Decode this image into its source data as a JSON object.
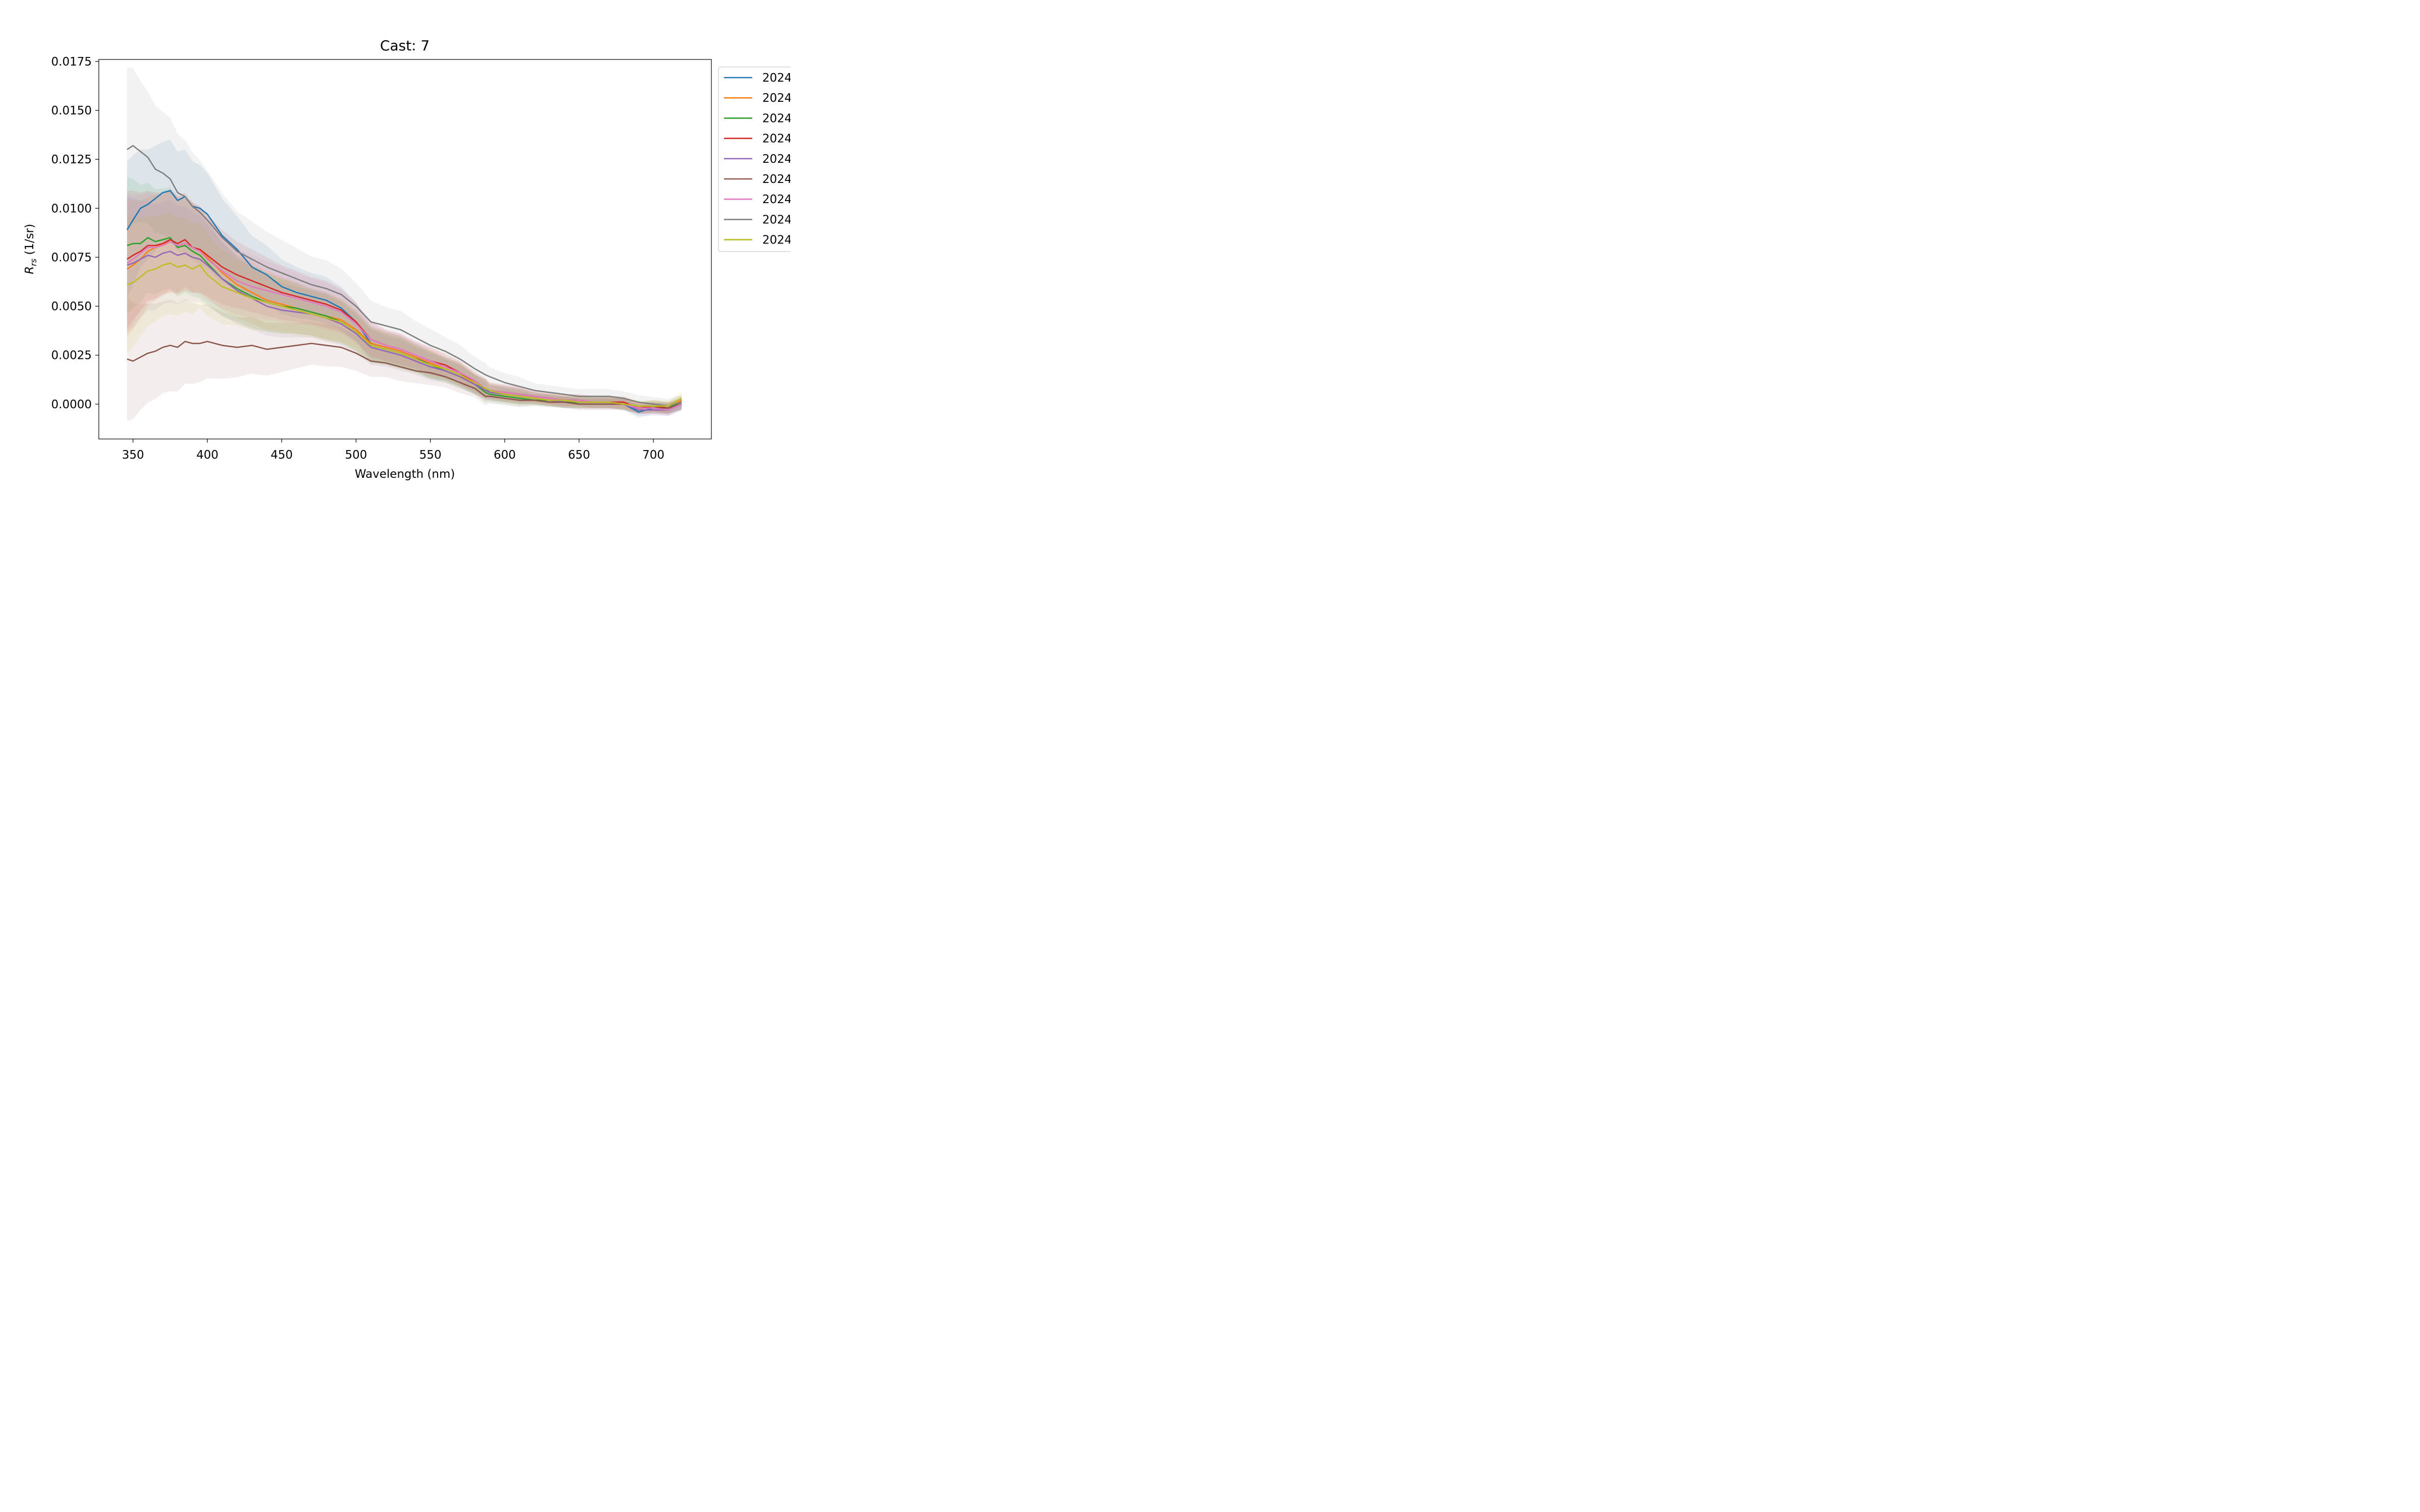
{
  "chart_data": {
    "type": "line",
    "title": "Cast: 7",
    "xlabel": "Wavelength (nm)",
    "ylabel_main": "R",
    "ylabel_sub": "rs",
    "ylabel_unit": " (1/sr)",
    "xlim": [
      327,
      739
    ],
    "ylim": [
      -0.00178,
      0.0176
    ],
    "xticks": [
      350,
      400,
      450,
      500,
      550,
      600,
      650,
      700
    ],
    "xtick_labels": [
      "350",
      "400",
      "450",
      "500",
      "550",
      "600",
      "650",
      "700"
    ],
    "yticks": [
      0,
      0.0025,
      0.005,
      0.0075,
      0.01,
      0.0125,
      0.015,
      0.0175
    ],
    "ytick_labels": [
      "0.0000",
      "0.0025",
      "0.0050",
      "0.0075",
      "0.0100",
      "0.0125",
      "0.0150",
      "0.0175"
    ],
    "grid": false,
    "legend_placement": "outside-upper-right",
    "x": [
      346,
      350,
      355,
      360,
      365,
      370,
      375,
      380,
      385,
      390,
      395,
      400,
      410,
      420,
      430,
      440,
      450,
      460,
      470,
      480,
      490,
      500,
      510,
      520,
      530,
      540,
      550,
      560,
      570,
      580,
      587,
      590,
      600,
      610,
      620,
      630,
      640,
      650,
      660,
      670,
      680,
      690,
      700,
      710,
      719
    ],
    "series": [
      {
        "name": "2024",
        "color": "#1f77b4",
        "values": [
          0.0089,
          0.0094,
          0.01,
          0.0102,
          0.0105,
          0.0108,
          0.0109,
          0.0104,
          0.0106,
          0.0101,
          0.01,
          0.0097,
          0.0086,
          0.0079,
          0.007,
          0.0066,
          0.006,
          0.0057,
          0.0055,
          0.0053,
          0.0049,
          0.0042,
          0.0031,
          0.0029,
          0.0027,
          0.0024,
          0.002,
          0.0018,
          0.0015,
          0.001,
          0.0008,
          0.0006,
          0.0005,
          0.0004,
          0.0003,
          0.0002,
          0.0001,
          0.0001,
          0.0001,
          0.0001,
          0.0,
          -0.0004,
          -0.0002,
          -0.0003,
          0.0
        ]
      },
      {
        "name": "2024",
        "color": "#ff7f0e",
        "values": [
          0.0069,
          0.0071,
          0.0074,
          0.0078,
          0.008,
          0.0082,
          0.0083,
          0.0081,
          0.0082,
          0.008,
          0.0079,
          0.0075,
          0.0067,
          0.0061,
          0.0057,
          0.0053,
          0.0051,
          0.0049,
          0.0047,
          0.0045,
          0.0043,
          0.0038,
          0.0031,
          0.0029,
          0.0027,
          0.0024,
          0.0021,
          0.0018,
          0.0015,
          0.001,
          0.0007,
          0.0006,
          0.0005,
          0.0004,
          0.0003,
          0.0002,
          0.0001,
          0.0001,
          0.0001,
          0.0001,
          0.0,
          -0.0002,
          -0.0002,
          -0.0002,
          0.0002
        ]
      },
      {
        "name": "2024",
        "color": "#2ca02c",
        "values": [
          0.0081,
          0.0082,
          0.0082,
          0.0085,
          0.0083,
          0.0084,
          0.0085,
          0.008,
          0.0081,
          0.0078,
          0.0076,
          0.0072,
          0.0064,
          0.0059,
          0.0055,
          0.0052,
          0.005,
          0.0049,
          0.0047,
          0.0045,
          0.0042,
          0.0037,
          0.003,
          0.0028,
          0.0026,
          0.0023,
          0.002,
          0.0017,
          0.0014,
          0.001,
          0.0006,
          0.0005,
          0.0004,
          0.0003,
          0.0002,
          0.0002,
          0.0001,
          0.0001,
          0.0001,
          0.0001,
          0.0,
          -0.0002,
          -0.0001,
          -0.0002,
          0.0001
        ]
      },
      {
        "name": "2024",
        "color": "#d62728",
        "values": [
          0.0074,
          0.0076,
          0.0078,
          0.0081,
          0.0081,
          0.0082,
          0.0084,
          0.0082,
          0.0084,
          0.008,
          0.0079,
          0.0076,
          0.007,
          0.0066,
          0.0063,
          0.006,
          0.0057,
          0.0055,
          0.0053,
          0.0051,
          0.0048,
          0.0042,
          0.0033,
          0.003,
          0.0028,
          0.0025,
          0.0022,
          0.002,
          0.0016,
          0.0011,
          0.0008,
          0.0007,
          0.0006,
          0.0005,
          0.0004,
          0.0003,
          0.0002,
          0.0002,
          0.0001,
          0.0001,
          0.0001,
          -0.0002,
          -0.0001,
          -0.0002,
          0.0
        ]
      },
      {
        "name": "2024",
        "color": "#9467bd",
        "values": [
          0.0071,
          0.0072,
          0.0074,
          0.0076,
          0.0075,
          0.0077,
          0.0078,
          0.0076,
          0.0077,
          0.0075,
          0.0074,
          0.0071,
          0.0064,
          0.0058,
          0.0054,
          0.005,
          0.0048,
          0.0047,
          0.0046,
          0.0044,
          0.0041,
          0.0036,
          0.0029,
          0.0027,
          0.0025,
          0.0022,
          0.0019,
          0.0017,
          0.0014,
          0.001,
          0.0007,
          0.0006,
          0.0005,
          0.0004,
          0.0003,
          0.0002,
          0.0001,
          0.0,
          0.0,
          0.0,
          0.0,
          -0.0003,
          -0.0003,
          -0.0003,
          0.0
        ]
      },
      {
        "name": "2024",
        "color": "#8c564b",
        "values": [
          0.0023,
          0.0022,
          0.0024,
          0.0026,
          0.0027,
          0.0029,
          0.003,
          0.0029,
          0.0032,
          0.0031,
          0.0031,
          0.0032,
          0.003,
          0.0029,
          0.003,
          0.0028,
          0.0029,
          0.003,
          0.0031,
          0.003,
          0.0029,
          0.0026,
          0.0022,
          0.0021,
          0.0019,
          0.0017,
          0.0016,
          0.0014,
          0.0011,
          0.0008,
          0.0004,
          0.0004,
          0.0003,
          0.0002,
          0.0002,
          0.0001,
          0.0001,
          0.0,
          0.0,
          0.0,
          0.0,
          -0.0002,
          -0.0002,
          -0.0002,
          0.0
        ]
      },
      {
        "name": "2024",
        "color": "#e377c2",
        "values": [
          0.0072,
          0.0074,
          0.0077,
          0.008,
          0.008,
          0.0081,
          0.0083,
          0.0081,
          0.0082,
          0.008,
          0.0078,
          0.0074,
          0.0068,
          0.0063,
          0.006,
          0.0058,
          0.0056,
          0.0054,
          0.0052,
          0.005,
          0.0047,
          0.0041,
          0.0033,
          0.003,
          0.0028,
          0.0025,
          0.0022,
          0.0019,
          0.0016,
          0.0012,
          0.0008,
          0.0007,
          0.0006,
          0.0005,
          0.0004,
          0.0003,
          0.0002,
          0.0002,
          0.0001,
          0.0001,
          0.0,
          -0.0002,
          -0.0002,
          -0.0003,
          0.0
        ]
      },
      {
        "name": "2024",
        "color": "#7f7f7f",
        "values": [
          0.013,
          0.0132,
          0.0129,
          0.0126,
          0.012,
          0.0118,
          0.0115,
          0.0108,
          0.0106,
          0.0101,
          0.0098,
          0.0094,
          0.0085,
          0.0078,
          0.0074,
          0.007,
          0.0067,
          0.0064,
          0.0061,
          0.0059,
          0.0056,
          0.005,
          0.0042,
          0.004,
          0.0038,
          0.0034,
          0.003,
          0.0027,
          0.0023,
          0.0018,
          0.0015,
          0.0014,
          0.0011,
          0.0009,
          0.0007,
          0.0006,
          0.0005,
          0.0004,
          0.0004,
          0.0004,
          0.0003,
          0.0001,
          0.0,
          -0.0001,
          0.0001
        ]
      },
      {
        "name": "2024",
        "color": "#bcbd22",
        "values": [
          0.0061,
          0.0062,
          0.0065,
          0.0068,
          0.0069,
          0.0071,
          0.0072,
          0.007,
          0.0071,
          0.0069,
          0.0071,
          0.0066,
          0.006,
          0.0057,
          0.0054,
          0.0052,
          0.005,
          0.0048,
          0.0046,
          0.0044,
          0.0042,
          0.0037,
          0.003,
          0.0028,
          0.0026,
          0.0023,
          0.002,
          0.0018,
          0.0015,
          0.0011,
          0.0008,
          0.0007,
          0.0005,
          0.0004,
          0.0003,
          0.0002,
          0.0002,
          0.0001,
          0.0001,
          0.0001,
          0.0,
          -0.0001,
          -0.0001,
          -0.0001,
          0.0003
        ]
      }
    ],
    "band_spread": [
      0.0035,
      0.0033,
      0.003,
      0.0028,
      0.0027,
      0.0026,
      0.0026,
      0.0025,
      0.0024,
      0.0023,
      0.0022,
      0.0021,
      0.0019,
      0.0017,
      0.0016,
      0.0015,
      0.0014,
      0.0013,
      0.0012,
      0.0012,
      0.0011,
      0.001,
      0.0009,
      0.0008,
      0.0008,
      0.0007,
      0.0007,
      0.0006,
      0.0006,
      0.0005,
      0.0005,
      0.0004,
      0.0004,
      0.0004,
      0.0003,
      0.0003,
      0.0003,
      0.0003,
      0.0003,
      0.0003,
      0.0003,
      0.0003,
      0.0003,
      0.0003,
      0.0003
    ],
    "band_opacity": 0.1
  }
}
